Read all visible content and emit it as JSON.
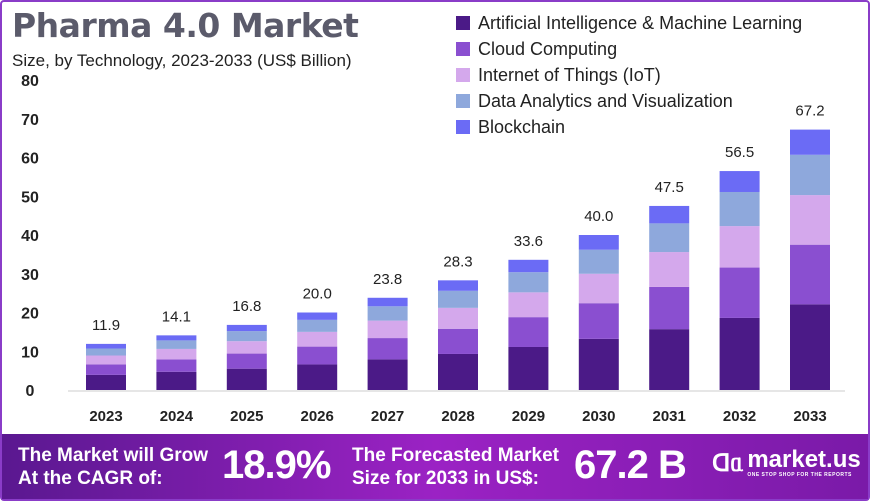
{
  "chart_data": {
    "type": "bar",
    "stacked": true,
    "title": "Pharma 4.0 Market",
    "subtitle": "Size, by Technology, 2023-2033 (US$ Billion)",
    "categories": [
      "2023",
      "2024",
      "2025",
      "2026",
      "2027",
      "2028",
      "2029",
      "2030",
      "2031",
      "2032",
      "2033"
    ],
    "totals": [
      11.9,
      14.1,
      16.8,
      20.0,
      23.8,
      28.3,
      33.6,
      40.0,
      47.5,
      56.5,
      67.2
    ],
    "total_labels": [
      "11.9",
      "14.1",
      "16.8",
      "20.0",
      "23.8",
      "28.3",
      "33.6",
      "40.0",
      "47.5",
      "56.5",
      "67.2"
    ],
    "series": [
      {
        "name": "Artificial Intelligence & Machine Learning",
        "color": "#4b1a87",
        "values": [
          3.9,
          4.7,
          5.5,
          6.6,
          7.9,
          9.3,
          11.1,
          13.2,
          15.7,
          18.6,
          22.1
        ]
      },
      {
        "name": "Cloud Computing",
        "color": "#8a4fd0",
        "values": [
          2.7,
          3.2,
          3.9,
          4.6,
          5.5,
          6.5,
          7.7,
          9.2,
          10.9,
          13.0,
          15.4
        ]
      },
      {
        "name": "Internet of Things (IoT)",
        "color": "#d4a8ec",
        "values": [
          2.3,
          2.7,
          3.2,
          3.8,
          4.5,
          5.4,
          6.4,
          7.6,
          9.0,
          10.7,
          12.8
        ]
      },
      {
        "name": "Data Analytics and Visualization",
        "color": "#8ea8dc",
        "values": [
          1.8,
          2.2,
          2.6,
          3.1,
          3.7,
          4.4,
          5.2,
          6.2,
          7.4,
          8.8,
          10.4
        ]
      },
      {
        "name": "Blockchain",
        "color": "#6b6bf5",
        "values": [
          1.2,
          1.3,
          1.6,
          1.9,
          2.2,
          2.7,
          3.2,
          3.8,
          4.5,
          5.4,
          6.5
        ]
      }
    ],
    "yticks": [
      "0",
      "10",
      "20",
      "30",
      "40",
      "50",
      "60",
      "70",
      "80"
    ],
    "ylim": [
      0,
      80
    ],
    "grid": false,
    "legend_placement": "top-right"
  },
  "footer": {
    "cagr_text_1": "The Market will Grow",
    "cagr_text_2": "At the CAGR of:",
    "cagr_value": "18.9%",
    "forecast_text_1": "The Forecasted Market",
    "forecast_text_2": "Size for 2033 in US$:",
    "forecast_value": "67.2 B",
    "logo_text": "market.us",
    "logo_tagline": "ONE STOP SHOP FOR THE REPORTS"
  }
}
